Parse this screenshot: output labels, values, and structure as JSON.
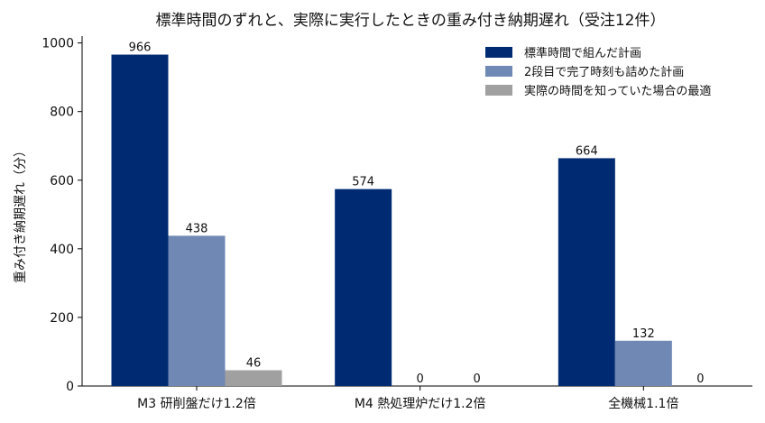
{
  "chart_data": {
    "type": "bar",
    "title": "標準時間のずれと、実際に実行したときの重み付き納期遅れ（受注12件）",
    "xlabel": "",
    "ylabel": "重み付き納期遅れ（分）",
    "ylim": [
      0,
      1020
    ],
    "yticks": [
      0,
      200,
      400,
      600,
      800,
      1000
    ],
    "grid": false,
    "legend_position": "top-right",
    "categories": [
      "M3 研削盤だけ1.2倍",
      "M4 熱処理炉だけ1.2倍",
      "全機械1.1倍"
    ],
    "series": [
      {
        "name": "標準時間で組んだ計画",
        "color": "#002b72",
        "values": [
          966,
          574,
          664
        ]
      },
      {
        "name": "2段目で完了時刻も詰めた計画",
        "color": "#7088b4",
        "values": [
          438,
          0,
          132
        ]
      },
      {
        "name": "実際の時間を知っていた場合の最適",
        "color": "#a0a0a0",
        "values": [
          46,
          0,
          0
        ]
      }
    ]
  }
}
